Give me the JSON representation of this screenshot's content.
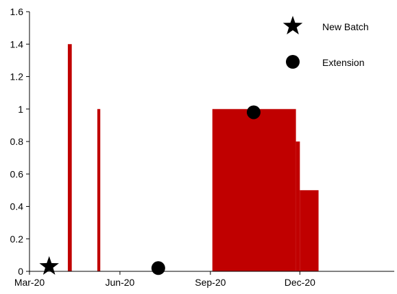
{
  "chart_data": {
    "type": "area",
    "title": "",
    "xlabel": "",
    "ylabel": "",
    "x_axis": {
      "type": "date",
      "range": [
        "2020-03-01",
        "2021-03-07"
      ],
      "ticks": [
        {
          "value": "2020-03-01",
          "label": "Mar-20"
        },
        {
          "value": "2020-06-01",
          "label": "Jun-20"
        },
        {
          "value": "2020-09-01",
          "label": "Sep-20"
        },
        {
          "value": "2020-12-01",
          "label": "Dec-20"
        }
      ]
    },
    "y_axis": {
      "range": [
        0,
        1.6
      ],
      "ticks": [
        {
          "value": 0,
          "label": "0"
        },
        {
          "value": 0.2,
          "label": "0.2"
        },
        {
          "value": 0.4,
          "label": "0.4"
        },
        {
          "value": 0.6,
          "label": "0.6"
        },
        {
          "value": 0.8,
          "label": "0.8"
        },
        {
          "value": 1,
          "label": "1"
        },
        {
          "value": 1.2,
          "label": "1.2"
        },
        {
          "value": 1.4,
          "label": "1.4"
        },
        {
          "value": 1.6,
          "label": "1.6"
        }
      ]
    },
    "grid": false,
    "legend_position": "top-right",
    "legend": [
      {
        "label": "New Batch",
        "marker": "star"
      },
      {
        "label": "Extension",
        "marker": "circle"
      }
    ],
    "series_color": "#c00000",
    "area_segments": [
      {
        "start": "2020-04-09",
        "end": "2020-04-13",
        "value": 1.4
      },
      {
        "start": "2020-05-09",
        "end": "2020-05-12",
        "value": 1
      },
      {
        "start": "2020-09-03",
        "end": "2020-11-27",
        "value": 1
      },
      {
        "start": "2020-11-27",
        "end": "2020-12-01",
        "value": 0.8
      },
      {
        "start": "2020-12-01",
        "end": "2020-12-20",
        "value": 0.5
      }
    ],
    "events": [
      {
        "type": "New Batch",
        "marker": "star",
        "date": "2020-03-21",
        "value": 0.03
      },
      {
        "type": "Extension",
        "marker": "circle",
        "date": "2020-07-10",
        "value": 0.02
      },
      {
        "type": "Extension",
        "marker": "circle",
        "date": "2020-10-15",
        "value": 0.98
      }
    ]
  }
}
